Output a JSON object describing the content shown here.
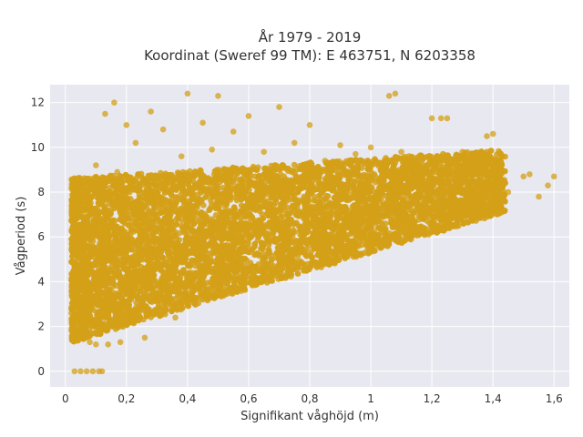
{
  "chart_data": {
    "type": "scatter",
    "title_line1": "År 1979 - 2019",
    "title_line2": "Koordinat (Sweref 99 TM): E 463751, N 6203358",
    "xlabel": "Signifikant våghöjd (m)",
    "ylabel": "Vågperiod (s)",
    "xlim": [
      -0.05,
      1.65
    ],
    "ylim": [
      -0.7,
      12.8
    ],
    "xticks": [
      0,
      0.2,
      0.4,
      0.6,
      0.8,
      1,
      1.2,
      1.4,
      1.6
    ],
    "xtick_labels": [
      "0",
      "0,2",
      "0,4",
      "0,6",
      "0,8",
      "1",
      "1,2",
      "1,4",
      "1,6"
    ],
    "yticks": [
      0,
      2,
      4,
      6,
      8,
      10,
      12
    ],
    "ytick_labels": [
      "0",
      "2",
      "4",
      "6",
      "8",
      "10",
      "12"
    ],
    "grid": true,
    "legend": "none",
    "colors": {
      "marker": "#d4a017",
      "plot_background": "#e8e8f0",
      "grid": "#ffffff"
    },
    "series": [
      {
        "values": [
          [
            0.03,
            0.0
          ],
          [
            0.05,
            0.0
          ],
          [
            0.07,
            0.0
          ],
          [
            0.09,
            0.0
          ],
          [
            0.11,
            0.0
          ],
          [
            0.12,
            0.0
          ],
          [
            0.02,
            2.8
          ],
          [
            0.03,
            1.4
          ],
          [
            0.04,
            4.3
          ],
          [
            0.05,
            3.0
          ],
          [
            0.06,
            6.5
          ],
          [
            0.07,
            7.5
          ],
          [
            0.08,
            1.3
          ],
          [
            0.08,
            8.6
          ],
          [
            0.09,
            2.3
          ],
          [
            0.1,
            9.2
          ],
          [
            0.1,
            1.2
          ],
          [
            0.12,
            5.1
          ],
          [
            0.13,
            7.3
          ],
          [
            0.13,
            11.5
          ],
          [
            0.14,
            1.2
          ],
          [
            0.15,
            3.4
          ],
          [
            0.16,
            12.0
          ],
          [
            0.17,
            8.9
          ],
          [
            0.18,
            1.3
          ],
          [
            0.2,
            11.0
          ],
          [
            0.2,
            4.6
          ],
          [
            0.22,
            2.2
          ],
          [
            0.23,
            10.2
          ],
          [
            0.25,
            6.7
          ],
          [
            0.26,
            1.5
          ],
          [
            0.28,
            11.6
          ],
          [
            0.3,
            8.4
          ],
          [
            0.3,
            2.7
          ],
          [
            0.32,
            10.8
          ],
          [
            0.35,
            5.5
          ],
          [
            0.36,
            2.4
          ],
          [
            0.38,
            9.6
          ],
          [
            0.4,
            12.4
          ],
          [
            0.4,
            3.0
          ],
          [
            0.42,
            7.8
          ],
          [
            0.45,
            11.1
          ],
          [
            0.45,
            3.2
          ],
          [
            0.48,
            9.9
          ],
          [
            0.5,
            12.3
          ],
          [
            0.5,
            3.6
          ],
          [
            0.55,
            10.7
          ],
          [
            0.55,
            4.1
          ],
          [
            0.6,
            11.4
          ],
          [
            0.6,
            4.6
          ],
          [
            0.65,
            9.8
          ],
          [
            0.65,
            4.9
          ],
          [
            0.7,
            11.8
          ],
          [
            0.7,
            5.2
          ],
          [
            0.75,
            10.2
          ],
          [
            0.8,
            11.0
          ],
          [
            0.8,
            5.6
          ],
          [
            0.85,
            9.4
          ],
          [
            0.9,
            10.1
          ],
          [
            0.9,
            5.8
          ],
          [
            0.95,
            9.7
          ],
          [
            1.0,
            10.0
          ],
          [
            1.0,
            6.1
          ],
          [
            1.05,
            9.3
          ],
          [
            1.06,
            12.3
          ],
          [
            1.08,
            12.4
          ],
          [
            1.1,
            9.8
          ],
          [
            1.12,
            6.5
          ],
          [
            1.2,
            11.3
          ],
          [
            1.23,
            11.3
          ],
          [
            1.25,
            11.3
          ],
          [
            1.25,
            7.2
          ],
          [
            1.3,
            9.8
          ],
          [
            1.35,
            7.5
          ],
          [
            1.38,
            10.5
          ],
          [
            1.4,
            10.6
          ],
          [
            1.42,
            8.9
          ],
          [
            1.45,
            8.0
          ],
          [
            1.5,
            8.7
          ],
          [
            1.52,
            8.8
          ],
          [
            1.55,
            7.8
          ],
          [
            1.58,
            8.3
          ],
          [
            1.6,
            8.7
          ]
        ]
      }
    ]
  }
}
